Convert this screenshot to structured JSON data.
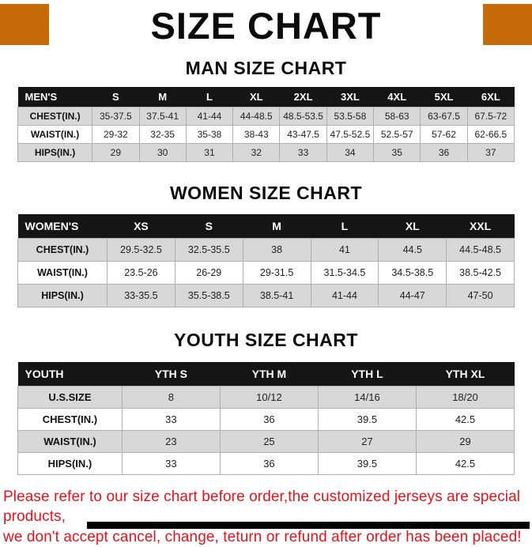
{
  "page": {
    "title": "SIZE CHART"
  },
  "colors": {
    "accent_orange": "#c56a08",
    "table_header_bg": "#151515",
    "row_alt_bg": "#d8d8d8",
    "row_border": "#b0b0b0",
    "footer_red": "#e8121c"
  },
  "sections": [
    {
      "heading": "MAN SIZE CHART",
      "table": {
        "header": [
          "MEN'S",
          "S",
          "M",
          "L",
          "XL",
          "2XL",
          "3XL",
          "4XL",
          "5XL",
          "6XL"
        ],
        "rows": [
          {
            "label": "CHEST(IN.)",
            "values": [
              "35-37.5",
              "37.5-41",
              "41-44",
              "44-48.5",
              "48.5-53.5",
              "53.5-58",
              "58-63",
              "63-67.5",
              "67.5-72"
            ]
          },
          {
            "label": "WAIST(IN.)",
            "values": [
              "29-32",
              "32-35",
              "35-38",
              "38-43",
              "43-47.5",
              "47.5-52.5",
              "52.5-57",
              "57-62",
              "62-66.5"
            ]
          },
          {
            "label": "HIPS(IN.)",
            "values": [
              "29",
              "30",
              "31",
              "32",
              "33",
              "34",
              "35",
              "36",
              "37"
            ]
          }
        ]
      }
    },
    {
      "heading": "WOMEN SIZE CHART",
      "table": {
        "header": [
          "WOMEN'S",
          "XS",
          "S",
          "M",
          "L",
          "XL",
          "XXL"
        ],
        "rows": [
          {
            "label": "CHEST(IN.)",
            "values": [
              "29.5-32.5",
              "32.5-35.5",
              "38",
              "41",
              "44.5",
              "44.5-48.5"
            ]
          },
          {
            "label": "WAIST(IN.)",
            "values": [
              "23.5-26",
              "26-29",
              "29-31.5",
              "31.5-34.5",
              "34.5-38.5",
              "38.5-42.5"
            ]
          },
          {
            "label": "HIPS(IN.)",
            "values": [
              "33-35.5",
              "35.5-38.5",
              "38.5-41",
              "41-44",
              "44-47",
              "47-50"
            ]
          }
        ]
      }
    },
    {
      "heading": "YOUTH SIZE CHART",
      "table": {
        "header": [
          "YOUTH",
          "YTH S",
          "YTH M",
          "YTH L",
          "YTH XL"
        ],
        "rows": [
          {
            "label": "U.S.SIZE",
            "values": [
              "8",
              "10/12",
              "14/16",
              "18/20"
            ]
          },
          {
            "label": "CHEST(IN.)",
            "values": [
              "33",
              "36",
              "39.5",
              "42.5"
            ]
          },
          {
            "label": "WAIST(IN.)",
            "values": [
              "23",
              "25",
              "27",
              "29"
            ]
          },
          {
            "label": "HIPS(IN.)",
            "values": [
              "33",
              "36",
              "39.5",
              "42.5"
            ]
          }
        ]
      }
    }
  ],
  "footer": {
    "line1": "Please refer to our size chart before order,the customized jerseys are special products,",
    "line2": "we don't accept cancel, change, teturn or refund after order has been placed!"
  }
}
